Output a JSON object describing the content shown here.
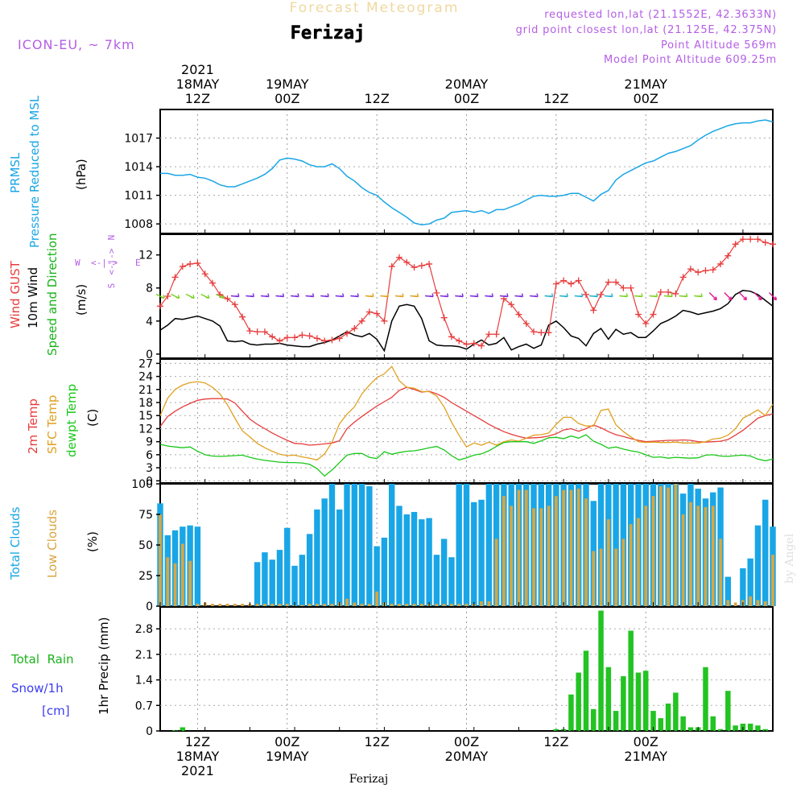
{
  "header": {
    "subtitle": "Forecast Meteogram",
    "location": "Ferizaj",
    "model": "ICON-EU, ~ 7km",
    "requested": "requested lon,lat (21.1552E, 42.3633N)",
    "grid_point": "grid point closest lon,lat (21.125E, 42.375N)",
    "point_altitude": "Point Altitude 569m",
    "model_altitude": "Model Point Altitude 609.25m",
    "watermark": "by Angel",
    "footer": "Ferizaj"
  },
  "time_axis": {
    "top_labels": [
      {
        "time": "2021-05-18 12Z",
        "lines": [
          "2021",
          "18MAY",
          "12Z"
        ]
      },
      {
        "time": "2021-05-19 00Z",
        "lines": [
          "19MAY",
          "00Z"
        ]
      },
      {
        "time": "2021-05-19 12Z",
        "lines": [
          "12Z"
        ]
      },
      {
        "time": "2021-05-20 00Z",
        "lines": [
          "20MAY",
          "00Z"
        ]
      },
      {
        "time": "2021-05-20 12Z",
        "lines": [
          "12Z"
        ]
      },
      {
        "time": "2021-05-21 00Z",
        "lines": [
          "21MAY",
          "00Z"
        ]
      }
    ],
    "bottom_labels": [
      {
        "time": "2021-05-18 12Z",
        "lines": [
          "12Z",
          "18MAY",
          "2021"
        ]
      },
      {
        "time": "2021-05-19 00Z",
        "lines": [
          "00Z",
          "19MAY"
        ]
      },
      {
        "time": "2021-05-19 12Z",
        "lines": [
          "12Z"
        ]
      },
      {
        "time": "2021-05-20 00Z",
        "lines": [
          "00Z",
          "20MAY"
        ]
      },
      {
        "time": "2021-05-20 12Z",
        "lines": [
          "12Z"
        ]
      },
      {
        "time": "2021-05-21 00Z",
        "lines": [
          "00Z",
          "21MAY"
        ]
      }
    ]
  },
  "panels": {
    "pressure": {
      "labels": [
        "PRMSL",
        "Pressure Reduced to MSL"
      ],
      "unit": "(hPa)",
      "ticks": [
        "1008",
        "1011",
        "1014",
        "1017"
      ],
      "color": "#19a6e6"
    },
    "wind": {
      "labels": [
        {
          "text": "Wind GUST",
          "color": "#e83c3c"
        },
        {
          "text": "10m Wind",
          "color": "#000000"
        },
        {
          "text": "Speed and Direction",
          "color": "#19b319"
        }
      ],
      "unit": "(m/s)",
      "ticks": [
        "0",
        "4",
        "8",
        "12"
      ],
      "compass": {
        "n": "N",
        "s": "S",
        "e": "E",
        "w": "W"
      }
    },
    "temperature": {
      "labels": [
        {
          "text": "2m Temp",
          "color": "#e83c3c"
        },
        {
          "text": "SFC Temp",
          "color": "#e0a020"
        },
        {
          "text": "dewpt Temp",
          "color": "#19c819"
        }
      ],
      "unit": "(C)",
      "ticks": [
        "0",
        "3",
        "6",
        "9",
        "12",
        "15",
        "18",
        "21",
        "24",
        "27"
      ]
    },
    "clouds": {
      "labels": [
        {
          "text": "Total Clouds",
          "color": "#19a6e6"
        },
        {
          "text": "Low Clouds",
          "color": "#d9a641"
        }
      ],
      "unit": "(%)",
      "ticks": [
        "0",
        "25",
        "50",
        "75",
        "100"
      ]
    },
    "precip": {
      "labels": [
        {
          "text": "Total  Rain",
          "color": "#19b319"
        },
        {
          "text": "Snow/1h",
          "color": "#3c3cf0"
        },
        {
          "text": "[cm]",
          "color": "#3c3cf0"
        }
      ],
      "unit": "1hr Precip (mm)",
      "ticks": [
        "0",
        "0.7",
        "1.4",
        "2.1",
        "2.8"
      ]
    }
  },
  "chart_data": [
    {
      "type": "line",
      "title": "PRMSL",
      "ylabel": "(hPa)",
      "ylim": [
        1007,
        1020
      ],
      "x_start": "2021-05-18 07Z",
      "x_step_hours": 1,
      "series": [
        {
          "name": "PRMSL",
          "color": "#19a6e6",
          "values": [
            1013.3,
            1013.3,
            1013.1,
            1013.1,
            1013.2,
            1012.9,
            1012.8,
            1012.5,
            1012.1,
            1011.9,
            1011.9,
            1012.2,
            1012.5,
            1012.8,
            1013.2,
            1013.8,
            1014.7,
            1014.9,
            1014.8,
            1014.6,
            1014.2,
            1014.0,
            1014.0,
            1014.3,
            1013.8,
            1013.0,
            1012.5,
            1011.8,
            1011.3,
            1011.0,
            1010.3,
            1009.7,
            1009.2,
            1008.7,
            1008.1,
            1007.9,
            1008.0,
            1008.4,
            1008.6,
            1009.2,
            1009.3,
            1009.4,
            1009.2,
            1009.4,
            1009.1,
            1009.5,
            1009.5,
            1009.8,
            1010.1,
            1010.5,
            1010.9,
            1011.0,
            1010.9,
            1010.9,
            1011.0,
            1011.2,
            1011.2,
            1010.8,
            1010.4,
            1011.1,
            1011.5,
            1012.6,
            1013.2,
            1013.6,
            1014.0,
            1014.4,
            1014.6,
            1015.0,
            1015.4,
            1015.6,
            1015.9,
            1016.2,
            1016.8,
            1017.3,
            1017.7,
            1018.0,
            1018.3,
            1018.5,
            1018.6,
            1018.6,
            1018.8,
            1018.9,
            1018.7
          ]
        }
      ]
    },
    {
      "type": "line",
      "title": "Wind GUST / 10m Wind",
      "ylabel": "(m/s)",
      "ylim": [
        -0.5,
        14.5
      ],
      "x_start": "2021-05-18 07Z",
      "x_step_hours": 1,
      "series": [
        {
          "name": "Wind GUST",
          "color": "#e83c3c",
          "values": [
            5.8,
            7.0,
            9.3,
            10.6,
            10.9,
            11.0,
            9.7,
            8.6,
            7.2,
            6.7,
            6.0,
            4.5,
            2.8,
            2.7,
            2.7,
            2.1,
            1.6,
            2.0,
            2.0,
            2.3,
            2.2,
            1.9,
            1.6,
            1.7,
            1.9,
            2.5,
            3.1,
            4.0,
            5.1,
            4.9,
            4.0,
            10.6,
            11.7,
            11.1,
            10.5,
            10.7,
            10.9,
            7.4,
            4.4,
            2.1,
            1.6,
            1.2,
            1.3,
            1.0,
            2.4,
            2.4,
            6.7,
            6.0,
            4.8,
            3.7,
            2.7,
            2.6,
            2.6,
            8.5,
            8.9,
            8.5,
            8.9,
            7.2,
            5.3,
            7.2,
            8.7,
            8.7,
            8.0,
            8.0,
            4.8,
            3.7,
            4.8,
            7.5,
            7.5,
            7.3,
            9.3,
            10.3,
            9.9,
            10.1,
            10.2,
            10.9,
            11.9,
            13.3,
            13.9,
            13.9,
            13.9,
            13.5,
            13.3
          ]
        },
        {
          "name": "10m Wind",
          "color": "#000000",
          "values": [
            2.9,
            3.5,
            4.3,
            4.2,
            4.4,
            4.6,
            4.3,
            4.0,
            3.4,
            1.6,
            1.5,
            1.6,
            1.2,
            1.1,
            1.2,
            1.2,
            1.3,
            1.1,
            1.0,
            0.9,
            0.9,
            1.2,
            1.4,
            1.7,
            2.2,
            2.7,
            2.3,
            2.1,
            2.5,
            1.8,
            0.4,
            4.0,
            5.8,
            6.0,
            5.8,
            4.3,
            1.6,
            1.1,
            1.0,
            1.0,
            0.9,
            0.6,
            1.2,
            1.7,
            1.1,
            1.3,
            2.0,
            0.5,
            0.9,
            1.2,
            0.7,
            1.1,
            3.5,
            4.0,
            3.2,
            2.2,
            1.9,
            1.0,
            2.5,
            3.1,
            1.8,
            3.0,
            2.4,
            2.6,
            2.0,
            2.0,
            2.8,
            3.7,
            4.1,
            4.6,
            5.3,
            5.1,
            4.8,
            5.0,
            5.2,
            5.5,
            6.1,
            7.2,
            7.7,
            7.6,
            7.2,
            6.5,
            5.8
          ]
        }
      ]
    },
    {
      "type": "line",
      "title": "Temperature",
      "ylabel": "(C)",
      "ylim": [
        -0.5,
        28
      ],
      "x_start": "2021-05-18 07Z",
      "x_step_hours": 1,
      "series": [
        {
          "name": "2m Temp",
          "color": "#e83c3c",
          "values": [
            12.5,
            14.8,
            16.0,
            17.0,
            17.8,
            18.5,
            18.8,
            18.9,
            18.9,
            18.8,
            17.9,
            16.0,
            14.2,
            13.0,
            12.0,
            11.0,
            10.1,
            9.3,
            8.6,
            8.5,
            8.2,
            8.3,
            8.5,
            8.7,
            9.2,
            12.0,
            13.5,
            14.8,
            16.0,
            17.2,
            18.2,
            19.2,
            20.8,
            21.5,
            21.0,
            20.4,
            20.6,
            20.0,
            19.2,
            18.0,
            17.0,
            16.0,
            15.0,
            14.0,
            13.0,
            12.1,
            11.3,
            10.7,
            10.2,
            9.8,
            9.9,
            10.0,
            10.3,
            10.8,
            11.7,
            12.0,
            11.4,
            12.0,
            12.8,
            12.2,
            11.3,
            10.6,
            10.2,
            9.7,
            9.3,
            9.0,
            9.1,
            9.2,
            9.3,
            9.3,
            9.4,
            9.3,
            9.0,
            8.9,
            9.0,
            9.1,
            9.5,
            10.5,
            11.6,
            13.0,
            14.4,
            15.0,
            15.4
          ]
        },
        {
          "name": "SFC Temp",
          "color": "#e0a020",
          "values": [
            15.0,
            19.0,
            21.0,
            22.0,
            22.6,
            22.8,
            22.5,
            21.5,
            20.0,
            17.5,
            14.4,
            11.5,
            10.1,
            8.6,
            7.6,
            6.8,
            6.1,
            5.8,
            5.9,
            5.5,
            5.2,
            4.8,
            6.2,
            8.9,
            13.1,
            15.3,
            17.0,
            20.0,
            22.0,
            23.7,
            24.6,
            26.3,
            23.0,
            21.5,
            21.3,
            20.5,
            20.5,
            19.5,
            17.0,
            13.5,
            10.5,
            7.8,
            8.7,
            8.2,
            8.9,
            8.2,
            9.0,
            9.4,
            9.1,
            9.8,
            10.5,
            10.6,
            11.0,
            13.0,
            14.6,
            14.6,
            13.2,
            12.6,
            12.6,
            16.2,
            16.5,
            12.9,
            11.3,
            10.1,
            9.0,
            8.8,
            8.9,
            8.8,
            8.8,
            8.9,
            8.7,
            8.7,
            8.7,
            9.0,
            9.6,
            9.8,
            10.5,
            12.0,
            14.4,
            15.3,
            16.3,
            15.0,
            17.6
          ]
        },
        {
          "name": "dewpt Temp",
          "color": "#19c819",
          "values": [
            8.4,
            8.0,
            7.8,
            7.6,
            7.8,
            6.8,
            6.0,
            5.7,
            5.6,
            5.7,
            5.8,
            5.9,
            5.4,
            5.0,
            4.7,
            4.5,
            4.3,
            4.2,
            4.2,
            4.1,
            3.8,
            2.8,
            1.1,
            2.5,
            4.2,
            5.9,
            6.3,
            6.3,
            5.4,
            5.1,
            6.7,
            6.1,
            6.5,
            6.8,
            6.9,
            7.2,
            7.6,
            7.9,
            7.1,
            5.8,
            4.8,
            5.3,
            5.9,
            6.2,
            6.9,
            7.9,
            8.8,
            9.0,
            9.0,
            9.0,
            8.6,
            9.2,
            9.9,
            10.0,
            9.7,
            10.3,
            9.8,
            10.6,
            9.1,
            8.4,
            7.5,
            7.8,
            7.3,
            6.9,
            6.6,
            6.0,
            5.4,
            5.5,
            5.2,
            5.4,
            5.3,
            5.2,
            5.3,
            5.9,
            6.0,
            5.7,
            5.6,
            5.8,
            5.9,
            5.7,
            5.0,
            4.6,
            5.0
          ]
        }
      ]
    },
    {
      "type": "bar",
      "title": "Clouds",
      "ylabel": "(%)",
      "ylim": [
        0,
        100
      ],
      "x_start": "2021-05-18 07Z",
      "x_step_hours": 1,
      "series": [
        {
          "name": "Total Clouds",
          "color": "#19a6e6",
          "values": [
            84,
            58,
            62,
            65,
            66,
            65,
            4,
            5,
            4,
            3,
            3,
            3,
            3,
            36,
            44,
            38,
            46,
            64,
            33,
            42,
            59,
            79,
            88,
            100,
            79,
            100,
            100,
            100,
            98,
            49,
            56,
            100,
            82,
            75,
            77,
            71,
            72,
            42,
            55,
            40,
            100,
            100,
            85,
            87,
            100,
            100,
            100,
            100,
            100,
            100,
            100,
            100,
            100,
            100,
            100,
            100,
            100,
            100,
            86,
            100,
            100,
            100,
            100,
            100,
            100,
            100,
            100,
            100,
            100,
            100,
            92,
            100,
            96,
            88,
            93,
            97,
            24,
            3,
            31,
            39,
            66,
            87,
            65
          ]
        },
        {
          "name": "Low Clouds",
          "color": "#d9a641",
          "values": [
            75,
            40,
            35,
            51,
            37,
            2,
            3,
            2,
            2,
            2,
            2,
            2,
            2,
            2,
            2,
            2,
            2,
            2,
            1,
            1,
            2,
            2,
            2,
            2,
            3,
            6,
            3,
            2,
            2,
            12,
            3,
            2,
            2,
            2,
            2,
            2,
            2,
            2,
            2,
            2,
            2,
            2,
            2,
            4,
            4,
            55,
            90,
            82,
            95,
            95,
            80,
            80,
            82,
            90,
            95,
            95,
            96,
            88,
            45,
            47,
            71,
            47,
            55,
            67,
            72,
            82,
            90,
            98,
            97,
            100,
            75,
            85,
            82,
            81,
            82,
            55,
            5,
            3,
            5,
            8,
            5,
            4,
            42
          ]
        }
      ]
    },
    {
      "type": "bar",
      "title": "1hr Precip",
      "ylabel": "1hr Precip (mm)",
      "ylim": [
        0,
        3.4
      ],
      "x_start": "2021-05-18 07Z",
      "x_step_hours": 1,
      "series": [
        {
          "name": "Total Rain",
          "color": "#22c322",
          "values": [
            0,
            0,
            0.02,
            0.1,
            0,
            0,
            0,
            0,
            0,
            0,
            0,
            0,
            0,
            0,
            0,
            0,
            0,
            0,
            0,
            0,
            0,
            0,
            0,
            0,
            0,
            0,
            0,
            0,
            0,
            0,
            0,
            0,
            0,
            0,
            0,
            0,
            0,
            0,
            0,
            0,
            0,
            0,
            0,
            0,
            0,
            0,
            0,
            0,
            0,
            0,
            0,
            0,
            0,
            0.05,
            0.05,
            1.0,
            1.6,
            2.2,
            0.6,
            3.3,
            1.75,
            0.55,
            1.5,
            2.75,
            1.6,
            1.65,
            0.55,
            0.35,
            0.75,
            1.05,
            0.4,
            0.1,
            0.1,
            1.75,
            0.4,
            0.05,
            1.1,
            0.15,
            0.2,
            0.2,
            0.15,
            0.05,
            0
          ]
        }
      ]
    }
  ]
}
